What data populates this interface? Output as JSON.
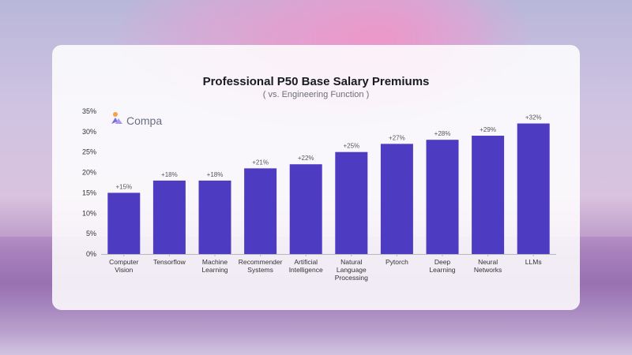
{
  "chart_data": {
    "type": "bar",
    "title": "Professional P50 Base Salary Premiums",
    "subtitle": "( vs. Engineering Function )",
    "categories": [
      [
        "Computer",
        "Vision"
      ],
      [
        "Tensorflow"
      ],
      [
        "Machine",
        "Learning"
      ],
      [
        "Recommender",
        "Systems"
      ],
      [
        "Artificial",
        "Intelligence"
      ],
      [
        "Natural",
        "Language",
        "Processing"
      ],
      [
        "Pytorch"
      ],
      [
        "Deep",
        "Learning"
      ],
      [
        "Neural",
        "Networks"
      ],
      [
        "LLMs"
      ]
    ],
    "values": [
      15,
      18,
      18,
      21,
      22,
      25,
      27,
      28,
      29,
      32
    ],
    "data_labels": [
      "+15%",
      "+18%",
      "+18%",
      "+21%",
      "+22%",
      "+25%",
      "+27%",
      "+28%",
      "+29%",
      "+32%"
    ],
    "ylim": [
      0,
      35
    ],
    "yticks": [
      0,
      5,
      10,
      15,
      20,
      25,
      30,
      35
    ],
    "ytick_labels": [
      "0%",
      "5%",
      "10%",
      "15%",
      "20%",
      "25%",
      "30%",
      "35%"
    ],
    "xlabel": "",
    "ylabel": "",
    "bar_color": "#4d3bc2",
    "grid": false
  },
  "brand": {
    "name": "Compa",
    "icon": "compa-logo-icon",
    "accent": "#f2a34b"
  }
}
